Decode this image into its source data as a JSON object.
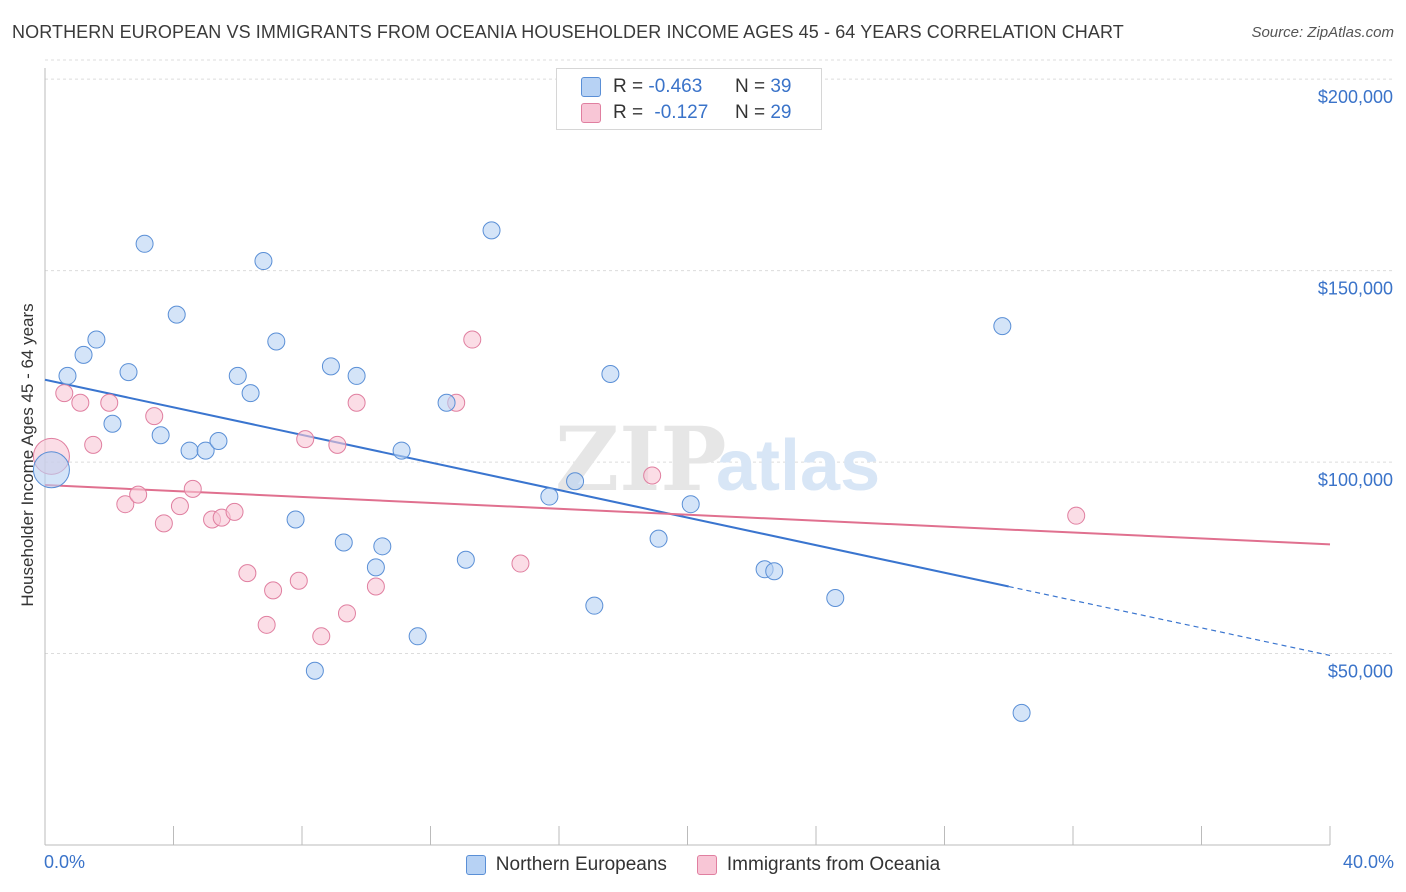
{
  "title": "NORTHERN EUROPEAN VS IMMIGRANTS FROM OCEANIA HOUSEHOLDER INCOME AGES 45 - 64 YEARS CORRELATION CHART",
  "source": "Source: ZipAtlas.com",
  "watermark": {
    "zip": "ZIP",
    "atlas": "atlas"
  },
  "legend": {
    "r_label": "R =",
    "n_label": "N =",
    "rows": [
      {
        "r": "-0.463",
        "n": "39"
      },
      {
        "r": "-0.127",
        "n": "29"
      }
    ]
  },
  "chart_data": {
    "type": "scatter",
    "ylabel": "Householder Income Ages 45 - 64 years",
    "xlim": [
      0,
      40
    ],
    "ylim": [
      0,
      205000
    ],
    "x_tick_labels": [
      "0.0%",
      "40.0%"
    ],
    "y_ticks": [
      50000,
      100000,
      150000,
      200000
    ],
    "y_tick_labels": [
      "$50,000",
      "$100,000",
      "$150,000",
      "$200,000"
    ],
    "grid": true,
    "colors": {
      "series1_fill": "#b7d2f4",
      "series1_stroke": "#5a8fd6",
      "series1_line": "#3a75cf",
      "series2_fill": "#f8c6d6",
      "series2_stroke": "#e07fa0",
      "series2_line": "#e0708f",
      "axis_text": "#3a73c9"
    },
    "series": [
      {
        "name": "Northern Europeans",
        "trend": {
          "x0": 0,
          "y0": 121500,
          "x1": 30.0,
          "y1": 67500,
          "x_dash_end": 40,
          "y_dash_end": 49500
        },
        "points": [
          [
            0.2,
            98000
          ],
          [
            0.7,
            122500
          ],
          [
            1.2,
            128000
          ],
          [
            1.6,
            132000
          ],
          [
            2.1,
            110000
          ],
          [
            2.6,
            123500
          ],
          [
            3.1,
            157000
          ],
          [
            3.6,
            107000
          ],
          [
            4.1,
            138500
          ],
          [
            4.5,
            103000
          ],
          [
            5.0,
            103000
          ],
          [
            5.4,
            105500
          ],
          [
            6.0,
            122500
          ],
          [
            6.4,
            118000
          ],
          [
            6.8,
            152500
          ],
          [
            7.2,
            131500
          ],
          [
            7.8,
            85000
          ],
          [
            8.4,
            45500
          ],
          [
            8.9,
            125000
          ],
          [
            9.3,
            79000
          ],
          [
            9.7,
            122500
          ],
          [
            10.3,
            72500
          ],
          [
            10.5,
            78000
          ],
          [
            11.1,
            103000
          ],
          [
            11.6,
            54500
          ],
          [
            12.5,
            115500
          ],
          [
            13.1,
            74500
          ],
          [
            13.9,
            160500
          ],
          [
            15.7,
            91000
          ],
          [
            16.5,
            95000
          ],
          [
            17.1,
            62500
          ],
          [
            17.6,
            123000
          ],
          [
            19.1,
            80000
          ],
          [
            20.1,
            89000
          ],
          [
            22.4,
            72000
          ],
          [
            22.7,
            71500
          ],
          [
            24.6,
            64500
          ],
          [
            29.8,
            135500
          ],
          [
            30.4,
            34500
          ]
        ]
      },
      {
        "name": "Immigrants from Oceania",
        "trend": {
          "x0": 0,
          "y0": 94000,
          "x1": 40,
          "y1": 78500
        },
        "points": [
          [
            0.2,
            101500
          ],
          [
            0.6,
            118000
          ],
          [
            1.1,
            115500
          ],
          [
            1.5,
            104500
          ],
          [
            2.0,
            115500
          ],
          [
            2.5,
            89000
          ],
          [
            2.9,
            91500
          ],
          [
            3.4,
            112000
          ],
          [
            3.7,
            84000
          ],
          [
            4.2,
            88500
          ],
          [
            4.6,
            93000
          ],
          [
            5.2,
            85000
          ],
          [
            5.5,
            85500
          ],
          [
            5.9,
            87000
          ],
          [
            6.3,
            71000
          ],
          [
            6.9,
            57500
          ],
          [
            7.1,
            66500
          ],
          [
            7.9,
            69000
          ],
          [
            8.1,
            106000
          ],
          [
            8.6,
            54500
          ],
          [
            9.1,
            104500
          ],
          [
            9.4,
            60500
          ],
          [
            9.7,
            115500
          ],
          [
            10.3,
            67500
          ],
          [
            12.8,
            115500
          ],
          [
            13.3,
            132000
          ],
          [
            14.8,
            73500
          ],
          [
            18.9,
            96500
          ],
          [
            32.1,
            86000
          ]
        ]
      }
    ]
  }
}
